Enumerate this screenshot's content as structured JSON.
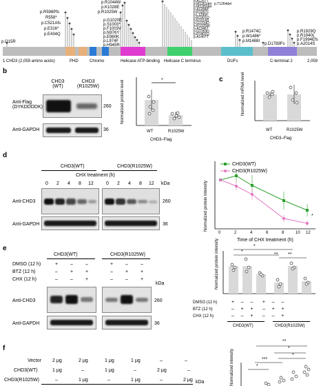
{
  "panel_a": {
    "label_sites": "p.Q15R",
    "protein_label": "1 CHD3 (2,059 amino acids)",
    "end_label": "2,059",
    "domains": [
      "PHD",
      "Chromo",
      "Helicase ATP-binding",
      "Helicase C terminus",
      "DUFs",
      "C-terminal 2"
    ],
    "mutations_left": [
      "p.R598Pfs",
      "R558*",
      "p.C521Afs",
      "p.E316*",
      "p.E434Q"
    ],
    "mutations_mid": [
      "p.R1025W",
      "p.R1044W",
      "p.K1028E",
      "p.G1020E",
      "p.S1003*",
      "p.F1003V",
      "p.N976Y",
      "p.E960K",
      "p.L974F",
      "p.H945R"
    ],
    "mutations_right": [
      "p.R1474C",
      "p.W1486*",
      "p.M1488I",
      "p.D1789Fs"
    ],
    "mutations_far": [
      "p.R1929Q",
      "p.R1940L",
      "p.F1994Efs",
      "p.A2014S"
    ],
    "mutations_top": [
      "p.A1257T",
      "p.M1261del",
      "p.T1264del",
      "p.M1282del",
      "p.A1284P",
      "p.R1287C",
      "p.L1295F",
      "p.R1301Q",
      "p.R1314S",
      "p.G1319D",
      "p.R1325W",
      "p.A1346T",
      "p.G1353D",
      "p.R1401Q",
      "p.A1407T"
    ]
  },
  "panel_b": {
    "label": "b",
    "lane1": "CHD3 (WT)",
    "lane2": "CHD3 (R1025W)",
    "blot1_label": "Anti-Flag (DYKDDDDK)",
    "blot2_label": "Anti-GAPDH",
    "kda1": "260",
    "kda2": "36",
    "chart": {
      "ylabel": "Normalized protein level",
      "categories": [
        "WT",
        "R1025W"
      ],
      "xgroup": "CHD3–Flag",
      "sig": "*"
    }
  },
  "panel_c": {
    "label": "c",
    "chart": {
      "ylabel": "Normalized mRNA level",
      "categories": [
        "WT",
        "R1025W"
      ],
      "xgroup": "CHD3–Flag"
    }
  },
  "panel_d": {
    "label": "d",
    "group1": "CHD3(WT)",
    "group2": "CHD3(R1025W)",
    "treatment": "CHX treatment (h)",
    "times": [
      "0",
      "2",
      "4",
      "8",
      "12",
      "0",
      "2",
      "4",
      "8",
      "12"
    ],
    "blot1_label": "Anti-CHD3",
    "blot2_label": "Anti-GAPDH",
    "kda_header": "kDa",
    "kda1": "260",
    "kda2": "36",
    "chart": {
      "ylabel": "Normalized protein intensity",
      "xlabel": "Time of CHX treatment (h)",
      "legend": [
        "CHD3(WT)",
        "CHD3(R1025W)"
      ],
      "colors": [
        "#2ca02c",
        "#e377c2"
      ],
      "x": [
        0,
        2,
        4,
        6,
        8,
        10,
        12
      ],
      "sig": "*"
    }
  },
  "panel_e": {
    "label": "e",
    "group1": "CHD3(WT)",
    "group2": "CHD3(R1025W)",
    "rows": [
      "DMSO (12 h)",
      "BTZ (12 h)",
      "CHX (12 h)"
    ],
    "signs": [
      [
        "+",
        "–",
        "–",
        "+",
        "–",
        "–"
      ],
      [
        "–",
        "+",
        "+",
        "–",
        "+",
        "+"
      ],
      [
        "–",
        "–",
        "+",
        "–",
        "–",
        "+"
      ]
    ],
    "blot1_label": "Anti-CHD3",
    "blot2_label": "Anti-GAPDH",
    "kda_header": "kDa",
    "kda1": "260",
    "kda2": "36",
    "chart": {
      "ylabel": "Normalized protein intensity",
      "rows": [
        "DMSO (12 h)",
        "BTZ (12 h)",
        "CHX (12 h)"
      ],
      "groups": [
        "CHD3(WT)",
        "CHD3(R1025W)"
      ],
      "sig": [
        "*",
        "*",
        "**",
        "**"
      ]
    }
  },
  "panel_f": {
    "label": "f",
    "rows": [
      "Vector",
      "CHD3(WT)",
      "CHD3(R1025W)"
    ],
    "row_values": [
      [
        "2 μg",
        "2 μg",
        "1 μg",
        "1 μg",
        "–",
        "–"
      ],
      [
        "1 μg",
        "–",
        "1 μg",
        "–",
        "2 μg",
        "–"
      ],
      [
        "–",
        "1 μg",
        "–",
        "1 μg",
        "–",
        "2 μg"
      ]
    ],
    "kda_header": "kDa",
    "chart": {
      "ylabel": "Normalized intensity",
      "sig": [
        "**",
        "*",
        "*",
        "***",
        "*"
      ]
    }
  }
}
